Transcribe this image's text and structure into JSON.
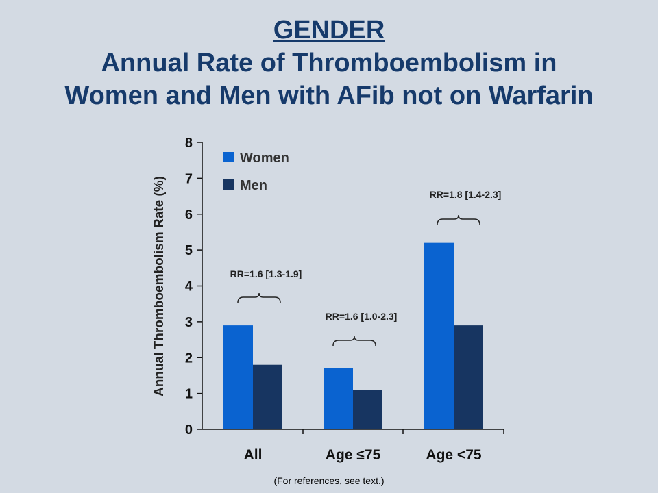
{
  "slide": {
    "heading": "GENDER",
    "title_line1": "Annual Rate of Thromboembolism in",
    "title_line2": "Women and Men with AFib not on Warfarin",
    "footnote": "(For references, see text.)"
  },
  "chart_data": {
    "type": "bar",
    "categories": [
      "All",
      "Age ≤75",
      "Age <75"
    ],
    "series": [
      {
        "name": "Women",
        "values": [
          2.9,
          1.7,
          5.2
        ],
        "color": "#0a63d0"
      },
      {
        "name": "Men",
        "values": [
          1.8,
          1.1,
          2.9
        ],
        "color": "#173561"
      }
    ],
    "ylabel": "Annual Thromboembolism Rate (%)",
    "xlabel": "",
    "ylim": [
      0,
      8
    ],
    "yticks": [
      0,
      1,
      2,
      3,
      4,
      5,
      6,
      7,
      8
    ],
    "legend_position": "top-left",
    "grid": false,
    "annotations": [
      "RR=1.6 [1.3-1.9]",
      "RR=1.6 [1.0-2.3]",
      "RR=1.8 [1.4-2.3]"
    ]
  }
}
